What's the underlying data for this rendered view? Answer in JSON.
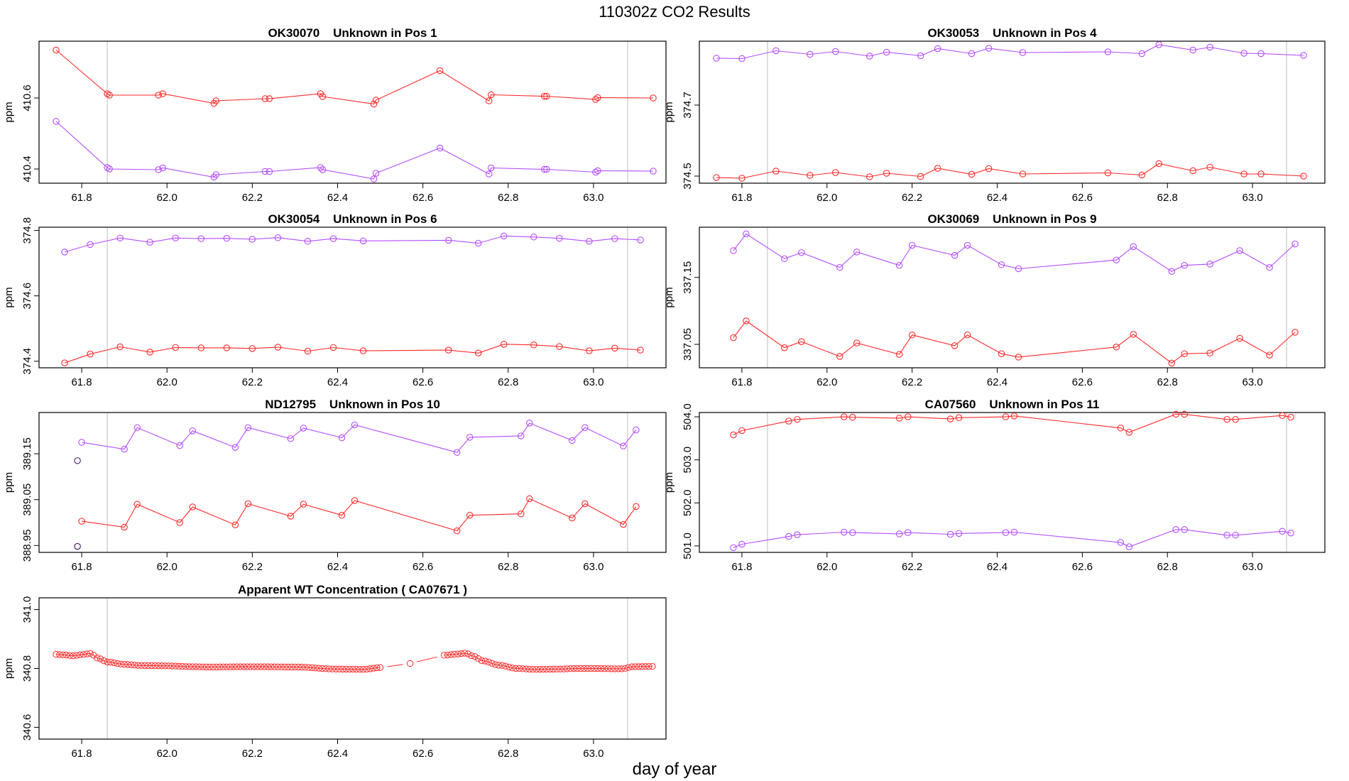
{
  "page": {
    "title": "110302z  CO2 Results",
    "xlabel": "day of year"
  },
  "colors": {
    "red": "#ff2a2a",
    "purple": "#b44cff",
    "dark": "#441166",
    "frame": "#000000",
    "vline": "#c8c8c8"
  },
  "chart_data": [
    {
      "type": "line",
      "title": "OK30070    Unknown in Pos 1",
      "ylabel": "ppm",
      "xlim": [
        61.7,
        63.17
      ],
      "ylim": [
        410.36,
        410.76
      ],
      "xticks": [
        "61.8",
        "62.0",
        "62.2",
        "62.4",
        "62.6",
        "62.8",
        "63.0"
      ],
      "yticks": [
        "410.4",
        "410.6"
      ],
      "vlines": [
        61.86,
        63.08
      ],
      "series": [
        {
          "name": "red",
          "color": "red",
          "x": [
            61.74,
            61.86,
            61.865,
            61.98,
            61.99,
            62.11,
            62.115,
            62.23,
            62.24,
            62.36,
            62.365,
            62.485,
            62.49,
            62.64,
            62.755,
            62.76,
            62.885,
            62.89,
            63.005,
            63.01,
            63.14
          ],
          "y": [
            410.735,
            410.612,
            410.608,
            410.608,
            410.612,
            410.585,
            410.592,
            410.598,
            410.598,
            410.612,
            410.604,
            410.583,
            410.594,
            410.677,
            410.592,
            410.609,
            410.605,
            410.605,
            410.596,
            410.601,
            410.6
          ]
        },
        {
          "name": "purple",
          "color": "purple",
          "x": [
            61.74,
            61.86,
            61.865,
            61.98,
            61.99,
            62.11,
            62.115,
            62.23,
            62.24,
            62.36,
            62.365,
            62.485,
            62.49,
            62.64,
            62.755,
            62.76,
            62.885,
            62.89,
            63.005,
            63.01,
            63.14
          ],
          "y": [
            410.534,
            410.404,
            410.4,
            410.398,
            410.403,
            410.377,
            410.384,
            410.393,
            410.393,
            410.404,
            410.398,
            410.372,
            410.388,
            410.459,
            410.386,
            410.403,
            410.399,
            410.399,
            410.391,
            410.395,
            410.394
          ]
        }
      ]
    },
    {
      "type": "line",
      "title": "OK30053    Unknown in Pos 4",
      "ylabel": "ppm",
      "xlim": [
        61.7,
        63.17
      ],
      "ylim": [
        374.48,
        374.88
      ],
      "xticks": [
        "61.8",
        "62.0",
        "62.2",
        "62.4",
        "62.6",
        "62.8",
        "63.0"
      ],
      "yticks": [
        "374.5",
        "374.7"
      ],
      "vlines": [
        61.86,
        63.08
      ],
      "series": [
        {
          "name": "purple",
          "color": "purple",
          "x": [
            61.74,
            61.8,
            61.88,
            61.96,
            62.02,
            62.1,
            62.14,
            62.22,
            62.26,
            62.34,
            62.38,
            62.46,
            62.66,
            62.74,
            62.78,
            62.86,
            62.9,
            62.98,
            63.02,
            63.12
          ],
          "y": [
            374.832,
            374.831,
            374.853,
            374.843,
            374.851,
            374.838,
            374.849,
            374.839,
            374.859,
            374.845,
            374.86,
            374.848,
            374.85,
            374.845,
            374.87,
            374.855,
            374.863,
            374.846,
            374.845,
            374.84
          ]
        },
        {
          "name": "red",
          "color": "red",
          "x": [
            61.74,
            61.8,
            61.88,
            61.96,
            62.02,
            62.1,
            62.14,
            62.22,
            62.26,
            62.34,
            62.38,
            62.46,
            62.66,
            62.74,
            62.78,
            62.86,
            62.9,
            62.98,
            63.02,
            63.12
          ],
          "y": [
            374.496,
            374.494,
            374.514,
            374.502,
            374.51,
            374.498,
            374.508,
            374.499,
            374.522,
            374.505,
            374.521,
            374.506,
            374.509,
            374.503,
            374.535,
            374.515,
            374.525,
            374.506,
            374.506,
            374.5
          ]
        }
      ]
    },
    {
      "type": "line",
      "title": "OK30054    Unknown in Pos 6",
      "ylabel": "ppm",
      "xlim": [
        61.7,
        63.17
      ],
      "ylim": [
        374.38,
        374.81
      ],
      "xticks": [
        "61.8",
        "62.0",
        "62.2",
        "62.4",
        "62.6",
        "62.8",
        "63.0"
      ],
      "yticks": [
        "374.4",
        "374.6",
        "374.8"
      ],
      "vlines": [
        61.86,
        63.08
      ],
      "series": [
        {
          "name": "purple",
          "color": "purple",
          "x": [
            61.76,
            61.82,
            61.89,
            61.96,
            62.02,
            62.08,
            62.14,
            62.2,
            62.26,
            62.33,
            62.39,
            62.46,
            62.66,
            62.73,
            62.79,
            62.86,
            62.92,
            62.99,
            63.05,
            63.11
          ],
          "y": [
            374.734,
            374.757,
            374.777,
            374.764,
            374.777,
            374.775,
            374.776,
            374.773,
            374.778,
            374.767,
            374.775,
            374.768,
            374.77,
            374.761,
            374.783,
            374.78,
            374.776,
            374.767,
            374.775,
            374.771
          ]
        },
        {
          "name": "red",
          "color": "red",
          "x": [
            61.76,
            61.82,
            61.89,
            61.96,
            62.02,
            62.08,
            62.14,
            62.2,
            62.26,
            62.33,
            62.39,
            62.46,
            62.66,
            62.73,
            62.79,
            62.86,
            62.92,
            62.99,
            63.05,
            63.11
          ],
          "y": [
            374.395,
            374.422,
            374.444,
            374.428,
            374.442,
            374.441,
            374.441,
            374.439,
            374.443,
            374.431,
            374.442,
            374.432,
            374.434,
            374.425,
            374.452,
            374.45,
            374.445,
            374.432,
            374.44,
            374.434
          ]
        }
      ]
    },
    {
      "type": "line",
      "title": "OK30069    Unknown in Pos 9",
      "ylabel": "ppm",
      "xlim": [
        61.7,
        63.17
      ],
      "ylim": [
        337.015,
        337.225
      ],
      "xticks": [
        "61.8",
        "62.0",
        "62.2",
        "62.4",
        "62.6",
        "62.8",
        "63.0"
      ],
      "yticks": [
        "337.05",
        "337.15"
      ],
      "vlines": [
        61.86,
        63.08
      ],
      "series": [
        {
          "name": "purple",
          "color": "purple",
          "x": [
            61.78,
            61.81,
            61.9,
            61.94,
            62.03,
            62.07,
            62.17,
            62.2,
            62.3,
            62.33,
            62.41,
            62.45,
            62.68,
            62.72,
            62.81,
            62.84,
            62.9,
            62.97,
            63.04,
            63.1
          ],
          "y": [
            337.19,
            337.215,
            337.178,
            337.187,
            337.165,
            337.188,
            337.168,
            337.198,
            337.183,
            337.198,
            337.169,
            337.163,
            337.176,
            337.196,
            337.159,
            337.168,
            337.17,
            337.19,
            337.165,
            337.2
          ]
        },
        {
          "name": "red",
          "color": "red",
          "x": [
            61.78,
            61.81,
            61.9,
            61.94,
            62.03,
            62.07,
            62.17,
            62.2,
            62.3,
            62.33,
            62.41,
            62.45,
            62.68,
            62.72,
            62.81,
            62.84,
            62.9,
            62.97,
            63.04,
            63.1
          ],
          "y": [
            337.06,
            337.085,
            337.045,
            337.054,
            337.032,
            337.052,
            337.035,
            337.064,
            337.048,
            337.064,
            337.036,
            337.031,
            337.046,
            337.065,
            337.022,
            337.036,
            337.037,
            337.059,
            337.034,
            337.068
          ]
        }
      ]
    },
    {
      "type": "line",
      "title": "ND12795    Unknown in Pos 10",
      "ylabel": "ppm",
      "xlim": [
        61.7,
        63.17
      ],
      "ylim": [
        388.935,
        389.24
      ],
      "xticks": [
        "61.8",
        "62.0",
        "62.2",
        "62.4",
        "62.6",
        "62.8",
        "63.0"
      ],
      "yticks": [
        "388.95",
        "389.05",
        "389.15"
      ],
      "vlines": [
        61.86,
        63.08
      ],
      "series": [
        {
          "name": "purple",
          "color": "purple",
          "x": [
            61.8,
            61.9,
            61.93,
            62.03,
            62.06,
            62.16,
            62.19,
            62.29,
            62.32,
            62.41,
            62.44,
            62.68,
            62.71,
            62.83,
            62.85,
            62.95,
            62.98,
            63.07,
            63.1
          ],
          "y": [
            389.175,
            389.16,
            389.207,
            389.168,
            389.2,
            389.164,
            389.207,
            389.183,
            389.206,
            389.185,
            389.213,
            389.153,
            389.186,
            389.189,
            389.217,
            389.179,
            389.207,
            389.167,
            389.202
          ]
        },
        {
          "name": "red",
          "color": "red",
          "x": [
            61.8,
            61.9,
            61.93,
            62.03,
            62.06,
            62.16,
            62.19,
            62.29,
            62.32,
            62.41,
            62.44,
            62.68,
            62.71,
            62.83,
            62.85,
            62.95,
            62.98,
            63.07,
            63.1
          ],
          "y": [
            389.003,
            388.99,
            389.04,
            389.0,
            389.034,
            388.995,
            389.041,
            389.014,
            389.04,
            389.016,
            389.048,
            388.982,
            389.016,
            389.019,
            389.052,
            389.01,
            389.041,
            388.996,
            389.035
          ]
        },
        {
          "name": "dark",
          "color": "dark",
          "markers_only": true,
          "x": [
            61.79,
            61.79
          ],
          "y": [
            389.135,
            388.948
          ]
        }
      ]
    },
    {
      "type": "line",
      "title": "CA07560    Unknown in Pos 11",
      "ylabel": "ppm",
      "xlim": [
        61.7,
        63.17
      ],
      "ylim": [
        500.85,
        504.1
      ],
      "xticks": [
        "61.8",
        "62.0",
        "62.2",
        "62.4",
        "62.6",
        "62.8",
        "63.0"
      ],
      "yticks": [
        "501.0",
        "502.0",
        "503.0",
        "504.0"
      ],
      "vlines": [
        61.86,
        63.08
      ],
      "series": [
        {
          "name": "red",
          "color": "red",
          "x": [
            61.78,
            61.8,
            61.91,
            61.93,
            62.04,
            62.06,
            62.17,
            62.19,
            62.29,
            62.31,
            62.42,
            62.44,
            62.69,
            62.71,
            62.82,
            62.84,
            62.94,
            62.96,
            63.07,
            63.09
          ],
          "y": [
            503.58,
            503.68,
            503.9,
            503.94,
            504.0,
            503.99,
            503.97,
            504.0,
            503.95,
            503.98,
            504.0,
            504.02,
            503.74,
            503.64,
            504.06,
            504.06,
            503.94,
            503.94,
            504.03,
            503.99
          ]
        },
        {
          "name": "purple",
          "color": "purple",
          "x": [
            61.78,
            61.8,
            61.91,
            61.93,
            62.04,
            62.06,
            62.17,
            62.19,
            62.29,
            62.31,
            62.42,
            62.44,
            62.69,
            62.71,
            62.82,
            62.84,
            62.94,
            62.96,
            63.07,
            63.09
          ],
          "y": [
            500.96,
            501.04,
            501.22,
            501.26,
            501.32,
            501.31,
            501.28,
            501.31,
            501.27,
            501.29,
            501.31,
            501.32,
            501.08,
            500.98,
            501.38,
            501.38,
            501.25,
            501.25,
            501.34,
            501.3
          ]
        }
      ]
    },
    {
      "type": "scatter",
      "title": "Apparent WT Concentration ( CA07671 )",
      "ylabel": "ppm",
      "xlim": [
        61.7,
        63.17
      ],
      "ylim": [
        340.56,
        341.04
      ],
      "xticks": [
        "61.8",
        "62.0",
        "62.2",
        "62.4",
        "62.6",
        "62.8",
        "63.0"
      ],
      "yticks": [
        "340.6",
        "340.8",
        "341.0"
      ],
      "vlines": [
        61.86,
        63.08
      ],
      "dense_segments": [
        {
          "x_start": 61.74,
          "x_end": 62.5,
          "step": 0.008,
          "knots_x": [
            61.74,
            61.76,
            61.78,
            61.8,
            61.82,
            61.84,
            61.86,
            61.9,
            61.94,
            62.0,
            62.06,
            62.1,
            62.2,
            62.3,
            62.4,
            62.46,
            62.5
          ],
          "knots_y": [
            340.848,
            340.846,
            340.843,
            340.847,
            340.851,
            340.834,
            340.822,
            340.814,
            340.81,
            340.809,
            340.806,
            340.805,
            340.806,
            340.805,
            340.798,
            340.797,
            340.803
          ]
        },
        {
          "x_start": 62.65,
          "x_end": 63.14,
          "step": 0.008,
          "knots_x": [
            62.65,
            62.68,
            62.7,
            62.72,
            62.74,
            62.78,
            62.82,
            62.86,
            62.92,
            62.96,
            63.0,
            63.05,
            63.07,
            63.09,
            63.14
          ],
          "knots_y": [
            340.845,
            340.849,
            340.852,
            340.841,
            340.826,
            340.811,
            340.8,
            340.797,
            340.798,
            340.8,
            340.8,
            340.799,
            340.799,
            340.806,
            340.807
          ]
        }
      ],
      "isolated_points": {
        "x": [
          62.57
        ],
        "y": [
          340.817
        ]
      }
    }
  ]
}
